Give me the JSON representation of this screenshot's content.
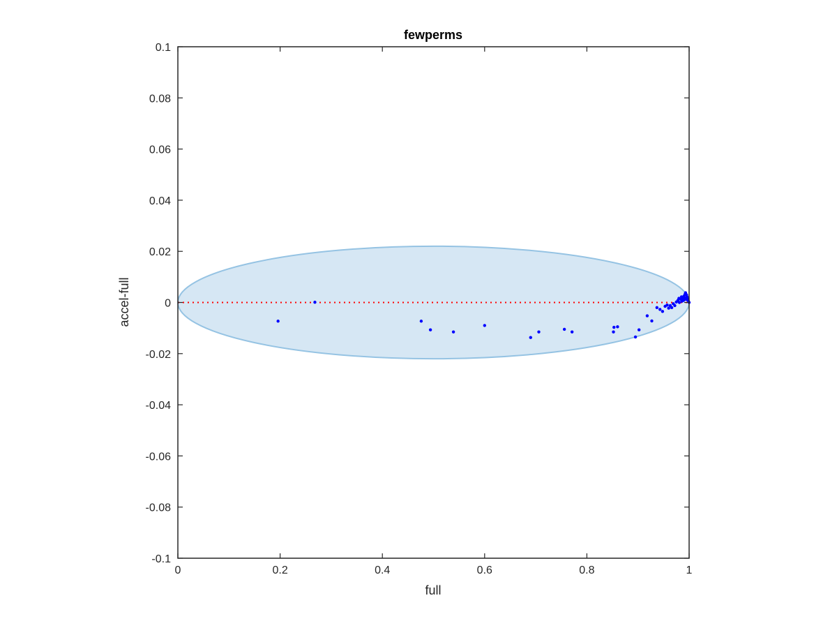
{
  "chart_data": {
    "type": "scatter",
    "title": "fewperms",
    "xlabel": "full",
    "ylabel": "accel-full",
    "xlim": [
      0,
      1
    ],
    "ylim": [
      -0.1,
      0.1
    ],
    "grid": false,
    "legend": "none",
    "x_ticks": [
      "0",
      "0.2",
      "0.4",
      "0.6",
      "0.8",
      "1"
    ],
    "x_tick_values": [
      0,
      0.2,
      0.4,
      0.6,
      0.8,
      1
    ],
    "y_ticks": [
      "-0.1",
      "-0.08",
      "-0.06",
      "-0.04",
      "-0.02",
      "0",
      "0.02",
      "0.04",
      "0.06",
      "0.08",
      "0.1"
    ],
    "y_tick_values": [
      -0.1,
      -0.08,
      -0.06,
      -0.04,
      -0.02,
      0,
      0.02,
      0.04,
      0.06,
      0.08,
      0.1
    ],
    "reference_line": {
      "y": 0,
      "style": "dotted",
      "color": "#ff0000"
    },
    "ellipse": {
      "center_x": 0.5,
      "center_y": 0,
      "radius_x": 0.5,
      "radius_y": 0.022,
      "fill": "#d6e7f4",
      "stroke": "#95c3e3"
    },
    "series": [
      {
        "color": "#0000ff",
        "points": [
          [
            0.196,
            -0.0073
          ],
          [
            0.268,
            0.0001
          ],
          [
            0.476,
            -0.0073
          ],
          [
            0.494,
            -0.0107
          ],
          [
            0.539,
            -0.0115
          ],
          [
            0.6,
            -0.009
          ],
          [
            0.69,
            -0.0137
          ],
          [
            0.706,
            -0.0115
          ],
          [
            0.756,
            -0.0105
          ],
          [
            0.771,
            -0.0115
          ],
          [
            0.853,
            -0.0097
          ],
          [
            0.852,
            -0.0115
          ],
          [
            0.86,
            -0.0095
          ],
          [
            0.895,
            -0.0135
          ],
          [
            0.902,
            -0.0107
          ],
          [
            0.918,
            -0.0052
          ],
          [
            0.927,
            -0.0072
          ],
          [
            0.937,
            -0.002
          ],
          [
            0.943,
            -0.0027
          ],
          [
            0.948,
            -0.0035
          ],
          [
            0.953,
            -0.0015
          ],
          [
            0.957,
            -0.001
          ],
          [
            0.96,
            -0.0022
          ],
          [
            0.963,
            -0.0012
          ],
          [
            0.966,
            -0.002
          ],
          [
            0.969,
            -0.0005
          ],
          [
            0.972,
            -0.0012
          ],
          [
            0.975,
            0.0002
          ],
          [
            0.978,
            0.0008
          ],
          [
            0.981,
            0.0
          ],
          [
            0.984,
            0.0012
          ],
          [
            0.986,
            0.0005
          ],
          [
            0.988,
            0.0015
          ],
          [
            0.99,
            0.0025
          ],
          [
            0.992,
            0.0032
          ],
          [
            0.993,
            0.0038
          ],
          [
            0.995,
            0.003
          ],
          [
            0.996,
            0.0022
          ],
          [
            0.997,
            0.0015
          ],
          [
            0.998,
            0.0008
          ],
          [
            0.999,
            0.0003
          ],
          [
            1.0,
            0.0
          ],
          [
            0.994,
            0.0012
          ],
          [
            0.989,
            0.0008
          ],
          [
            0.991,
            0.0018
          ],
          [
            0.985,
            0.0022
          ],
          [
            0.98,
            0.0016
          ]
        ]
      }
    ]
  }
}
